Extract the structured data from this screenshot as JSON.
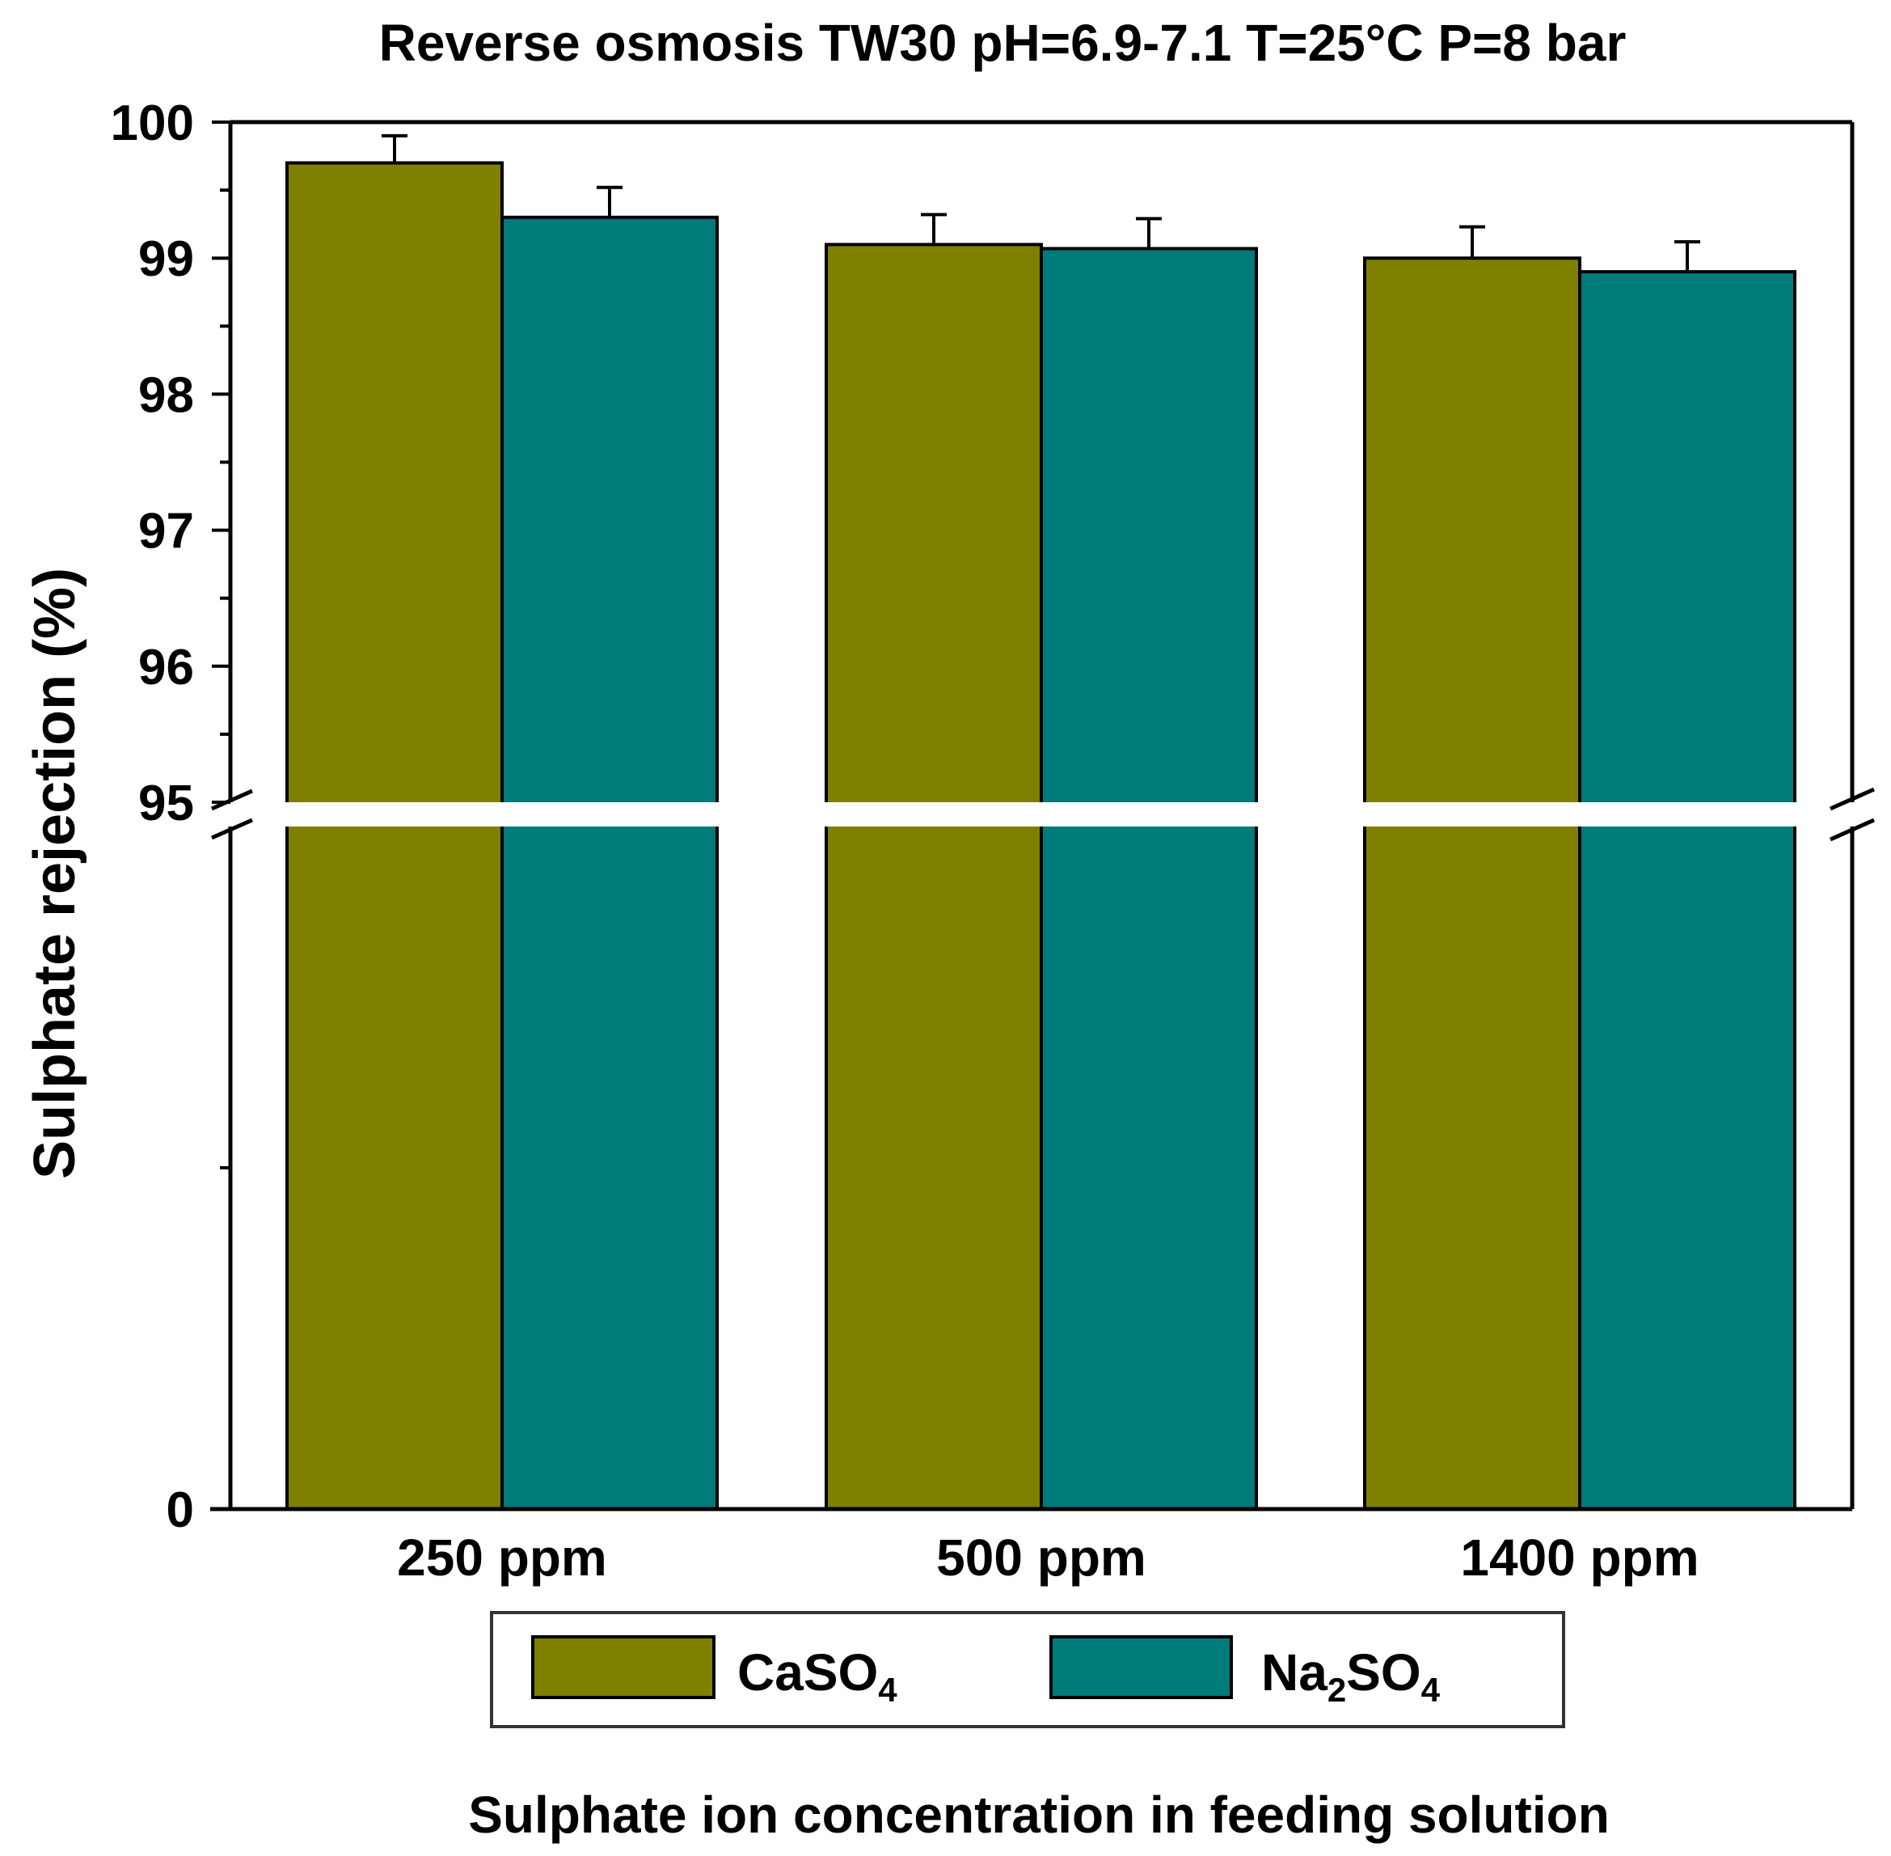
{
  "chart_data": {
    "type": "bar",
    "title": "Reverse osmosis TW30 pH=6.9-7.1 T=25°C P=8 bar",
    "xlabel": "Sulphate ion concentration in feeding solution",
    "ylabel": "Sulphate rejection (%)",
    "categories": [
      "250 ppm",
      "500 ppm",
      "1400 ppm"
    ],
    "series": [
      {
        "name": "CaSO4",
        "legend": {
          "base": "CaSO",
          "sub1": "",
          "mid": "",
          "sub2": "4"
        },
        "color": "#7f7f00",
        "values": [
          99.7,
          99.1,
          99.0
        ],
        "error": [
          0.2,
          0.22,
          0.23
        ]
      },
      {
        "name": "Na2SO4",
        "legend": {
          "base": "Na",
          "sub1": "2",
          "mid": "SO",
          "sub2": "4"
        },
        "color": "#007b7b",
        "values": [
          99.3,
          99.07,
          98.9
        ],
        "error": [
          0.22,
          0.22,
          0.22
        ]
      }
    ],
    "y_axis": {
      "broken": true,
      "lower_range": [
        0,
        95
      ],
      "upper_range": [
        95,
        100
      ],
      "tick_labels": [
        "0",
        "95",
        "96",
        "97",
        "98",
        "99",
        "100"
      ]
    },
    "grid": false,
    "legend_position": "bottom-center"
  }
}
